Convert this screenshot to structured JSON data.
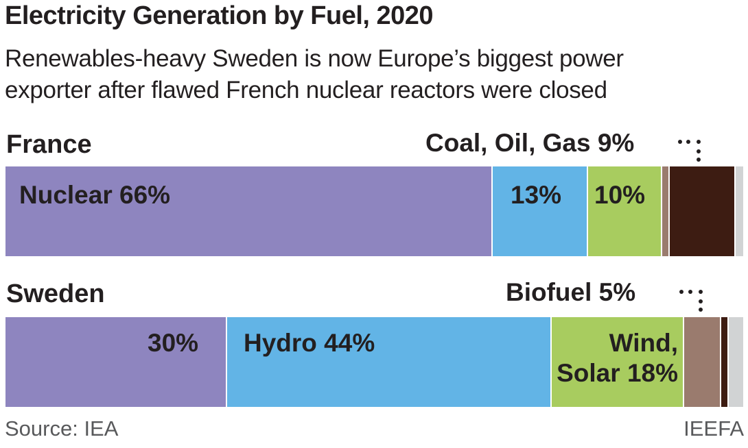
{
  "title": "Electricity Generation by Fuel, 2020",
  "subtitle": [
    "Renewables-heavy Sweden is now Europe’s biggest power",
    "exporter after flawed French nuclear reactors were closed"
  ],
  "source": "Source: IEA",
  "credit": "IEEFA",
  "chart_data": {
    "type": "bar",
    "orientation": "horizontal-stacked-100",
    "title": "Electricity Generation by Fuel, 2020",
    "unit": "%",
    "colors": {
      "nuclear": "#8e85bf",
      "hydro": "#62b4e6",
      "wind_solar": "#a8cc5f",
      "biofuel": "#9a7b6e",
      "fossil": "#3d1c12",
      "other": "#d1d3d4"
    },
    "series_keys": [
      "nuclear",
      "hydro",
      "wind_solar",
      "biofuel",
      "fossil",
      "other"
    ],
    "categories": [
      "France",
      "Sweden"
    ],
    "rows": [
      {
        "country": "France",
        "values": [
          66,
          13,
          10,
          1,
          9,
          1
        ],
        "labels": {
          "nuclear": "Nuclear  66%",
          "hydro": "13%",
          "wind_solar": "10%"
        },
        "callout": "Coal, Oil, Gas 9%"
      },
      {
        "country": "Sweden",
        "values": [
          30,
          44,
          18,
          5,
          1,
          2
        ],
        "labels": {
          "nuclear": "30%",
          "hydro": "Hydro 44%",
          "wind_solar": "Wind,\nSolar 18%"
        },
        "callout": "Biofuel  5%"
      }
    ]
  }
}
